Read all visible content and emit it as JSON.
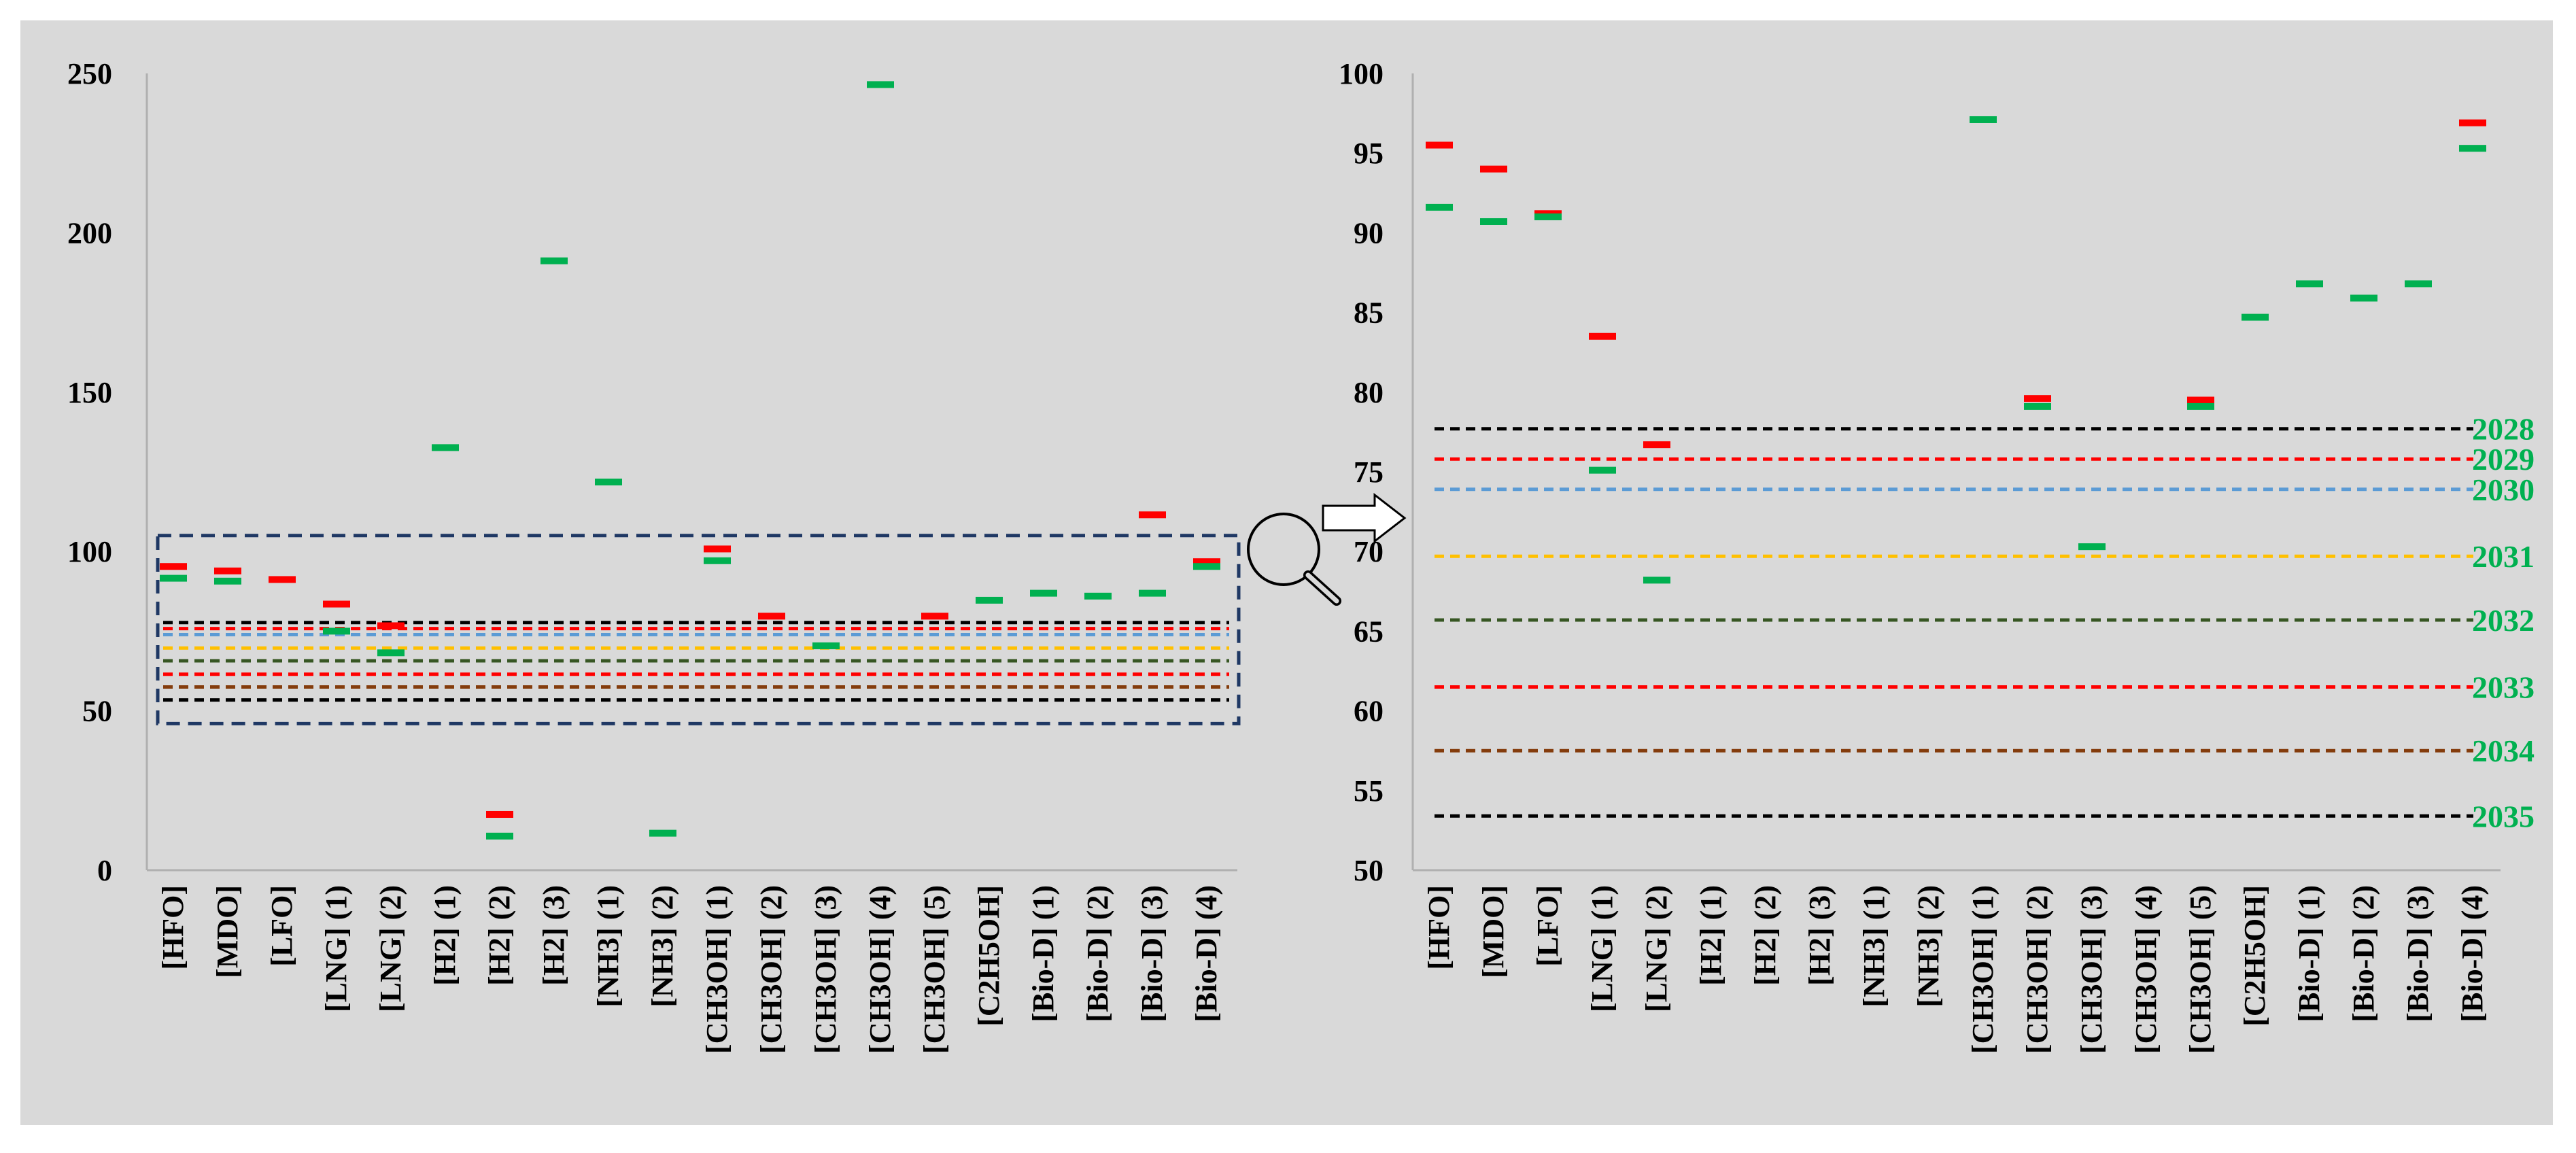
{
  "chart_data": [
    {
      "type": "scatter",
      "title": "",
      "xlabel": "",
      "ylabel": "",
      "ylim": [
        0,
        250
      ],
      "yticks": [
        0,
        50,
        100,
        150,
        200,
        250
      ],
      "categories": [
        "[HFO]",
        "[MDO]",
        "[LFO]",
        "[LNG] (1)",
        "[LNG] (2)",
        "[H2] (1)",
        "[H2] (2)",
        "[H2] (3)",
        "[NH3] (1)",
        "[NH3] (2)",
        "[CH3OH] (1)",
        "[CH3OH] (2)",
        "[CH3OH] (3)",
        "[CH3OH] (4)",
        "[CH3OH] (5)",
        "[C2H5OH]",
        "[Bio-D] (1)",
        "[Bio-D] (2)",
        "[Bio-D] (3)",
        "[Bio-D] (4)"
      ],
      "series": [
        {
          "color": "#ff0000",
          "values": [
            95.3,
            93.9,
            91.2,
            83.5,
            76.7,
            null,
            17.5,
            null,
            null,
            null,
            100.8,
            79.7,
            null,
            null,
            79.7,
            null,
            null,
            null,
            111.5,
            96.8
          ]
        },
        {
          "color": "#00b050",
          "values": [
            91.6,
            90.7,
            null,
            75.0,
            68.2,
            132.6,
            10.7,
            191.2,
            121.8,
            11.6,
            97.1,
            null,
            70.4,
            246.5,
            null,
            84.7,
            86.9,
            86.0,
            86.9,
            95.3
          ]
        }
      ],
      "reference_lines": [
        {
          "value": 77.7,
          "color": "#000000"
        },
        {
          "value": 75.8,
          "color": "#ff0000"
        },
        {
          "value": 73.9,
          "color": "#5b9bd5"
        },
        {
          "value": 69.7,
          "color": "#ffc000"
        },
        {
          "value": 65.7,
          "color": "#375623"
        },
        {
          "value": 61.5,
          "color": "#ff0000"
        },
        {
          "value": 57.5,
          "color": "#843c0c"
        },
        {
          "value": 53.4,
          "color": "#000000"
        }
      ],
      "zoom_box": {
        "ymin": 46,
        "ymax": 105
      }
    },
    {
      "type": "scatter",
      "title": "",
      "xlabel": "",
      "ylabel": "",
      "ylim": [
        50,
        100
      ],
      "yticks": [
        50,
        55,
        60,
        65,
        70,
        75,
        80,
        85,
        90,
        95,
        100
      ],
      "categories": [
        "[HFO]",
        "[MDO]",
        "[LFO]",
        "[LNG] (1)",
        "[LNG] (2)",
        "[H2] (1)",
        "[H2] (2)",
        "[H2] (3)",
        "[NH3] (1)",
        "[NH3] (2)",
        "[CH3OH] (1)",
        "[CH3OH] (2)",
        "[CH3OH] (3)",
        "[CH3OH] (4)",
        "[CH3OH] (5)",
        "[C2H5OH]",
        "[Bio-D] (1)",
        "[Bio-D] (2)",
        "[Bio-D] (3)",
        "[Bio-D] (4)"
      ],
      "series": [
        {
          "color": "#ff0000",
          "values": [
            95.5,
            94.0,
            91.2,
            83.5,
            76.7,
            null,
            null,
            null,
            null,
            null,
            null,
            79.6,
            null,
            null,
            79.5,
            null,
            null,
            null,
            null,
            96.9
          ]
        },
        {
          "color": "#00b050",
          "values": [
            91.6,
            90.7,
            91.0,
            75.1,
            68.2,
            null,
            null,
            null,
            null,
            null,
            97.1,
            79.1,
            70.3,
            null,
            79.1,
            84.7,
            86.8,
            85.9,
            86.8,
            95.3
          ]
        }
      ],
      "reference_lines": [
        {
          "label": "2028",
          "value": 77.7,
          "color": "#000000"
        },
        {
          "label": "2029",
          "value": 75.8,
          "color": "#ff0000"
        },
        {
          "label": "2030",
          "value": 73.9,
          "color": "#5b9bd5"
        },
        {
          "label": "2031",
          "value": 69.7,
          "color": "#ffc000"
        },
        {
          "label": "2032",
          "value": 65.7,
          "color": "#375623"
        },
        {
          "label": "2033",
          "value": 61.5,
          "color": "#ff0000"
        },
        {
          "label": "2034",
          "value": 57.5,
          "color": "#843c0c"
        },
        {
          "label": "2035",
          "value": 53.4,
          "color": "#000000"
        }
      ]
    }
  ],
  "icons": {
    "zoom": "magnifier-icon",
    "arrow": "right-arrow-icon"
  },
  "colors": {
    "background": "#d9d9d9",
    "axis": "#b0b0b0",
    "zoom_box": "#1f3864"
  }
}
